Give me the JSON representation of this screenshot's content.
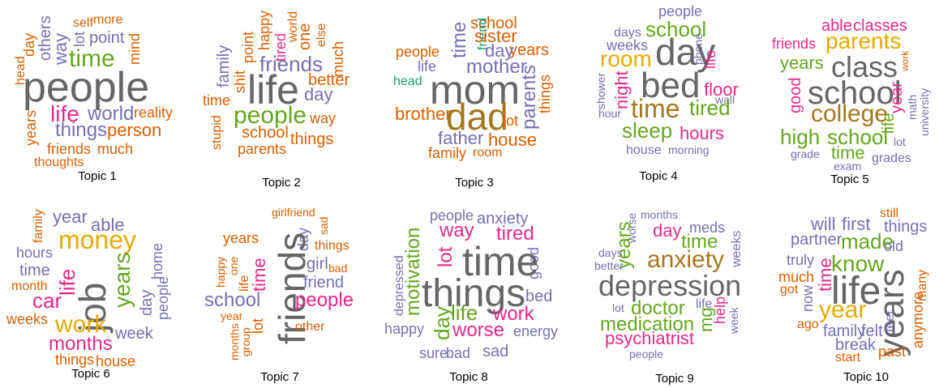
{
  "topics": [
    {
      "label": "Topic 1",
      "words": [
        "self",
        "more",
        "others",
        "day",
        "lot",
        "point",
        "way",
        "mind",
        "time",
        "head",
        "people",
        "life",
        "world",
        "reality",
        "years",
        "things",
        "person",
        "friends",
        "much",
        "thoughts"
      ]
    },
    {
      "label": "Topic 2",
      "words": [
        "family",
        "shit",
        "point",
        "happy",
        "tired",
        "world",
        "one",
        "else",
        "much",
        "friends",
        "life",
        "better",
        "day",
        "time",
        "stupid",
        "people",
        "way",
        "school",
        "things",
        "parents"
      ]
    },
    {
      "label": "Topic 3",
      "words": [
        "school",
        "friend",
        "time",
        "sister",
        "people",
        "years",
        "day",
        "life",
        "mother",
        "head",
        "mom",
        "parents",
        "things",
        "brother",
        "dad",
        "lot",
        "father",
        "house",
        "family",
        "room"
      ]
    },
    {
      "label": "Topic 4",
      "words": [
        "people",
        "days",
        "school",
        "weeks",
        "day",
        "phone",
        "life",
        "room",
        "shower",
        "night",
        "bed",
        "floor",
        "wall",
        "hour",
        "time",
        "tired",
        "sleep",
        "hours",
        "house",
        "morning"
      ]
    },
    {
      "label": "Topic 5",
      "words": [
        "able",
        "classes",
        "friends",
        "parents",
        "work",
        "years",
        "class",
        "good",
        "school",
        "year",
        "math",
        "university",
        "college",
        "life",
        "high",
        "school",
        "lot",
        "time",
        "grade",
        "grades",
        "exam"
      ]
    },
    {
      "label": "Topic 6",
      "words": [
        "family",
        "year",
        "able",
        "money",
        "home",
        "hours",
        "life",
        "time",
        "month",
        "job",
        "years",
        "car",
        "day",
        "people",
        "weeks",
        "work",
        "week",
        "months",
        "things",
        "house"
      ]
    },
    {
      "label": "Topic 7",
      "words": [
        "girlfriend",
        "sad",
        "day",
        "years",
        "happy",
        "one",
        "life",
        "time",
        "things",
        "friends",
        "girl",
        "bad",
        "friend",
        "school",
        "people",
        "year",
        "months",
        "group",
        "lot",
        "other"
      ]
    },
    {
      "label": "Topic 8",
      "words": [
        "people",
        "anxiety",
        "way",
        "tired",
        "motivation",
        "depressed",
        "lot",
        "good",
        "time",
        "things",
        "bed",
        "day",
        "life",
        "work",
        "happy",
        "worse",
        "energy",
        "sure",
        "bad",
        "sad"
      ]
    },
    {
      "label": "Topic 9",
      "words": [
        "months",
        "worse",
        "meds",
        "day",
        "years",
        "time",
        "days",
        "better",
        "weeks",
        "anxiety",
        "depression",
        "lot",
        "doctor",
        "life",
        "mg",
        "help",
        "week",
        "medication",
        "psychiatrist",
        "people"
      ]
    },
    {
      "label": "Topic 10",
      "words": [
        "still",
        "will",
        "first",
        "things",
        "partner",
        "made",
        "old",
        "truly",
        "know",
        "time",
        "many",
        "life",
        "years",
        "much",
        "got",
        "now",
        "anymore",
        "feel",
        "year",
        "ago",
        "family",
        "felt",
        "break",
        "past",
        "start"
      ]
    }
  ]
}
